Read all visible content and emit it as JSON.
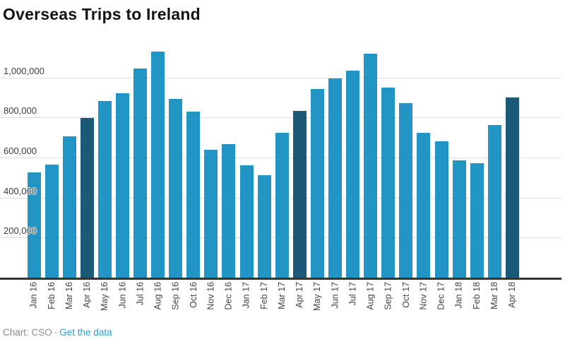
{
  "chart_data": {
    "type": "bar",
    "title": "Overseas Trips to Ireland",
    "categories": [
      "Jan 16",
      "Feb 16",
      "Mar 16",
      "Apr 16",
      "May 16",
      "Jun 16",
      "Jul 16",
      "Aug 16",
      "Sep 16",
      "Oct 16",
      "Nov 16",
      "Dec 16",
      "Jan 17",
      "Feb 17",
      "Mar 17",
      "Apr 17",
      "May 17",
      "Jun 17",
      "Jul 17",
      "Aug 17",
      "Sep 17",
      "Oct 17",
      "Nov 17",
      "Dec 17",
      "Jan 18",
      "Feb 18",
      "Mar 18",
      "Apr 18"
    ],
    "values": [
      524000,
      564000,
      704000,
      798000,
      882000,
      920000,
      1045000,
      1128000,
      892000,
      830000,
      640000,
      666000,
      561000,
      512000,
      722000,
      833000,
      943000,
      996000,
      1034000,
      1119000,
      948000,
      872000,
      722000,
      680000,
      585000,
      573000,
      763000,
      900000
    ],
    "highlight_indices": [
      3,
      15,
      27
    ],
    "ytick_values": [
      200000,
      400000,
      600000,
      800000,
      1000000
    ],
    "ytick_labels": [
      "200,000",
      "400,000",
      "600,000",
      "800,000",
      "1,000,000"
    ],
    "ylim": [
      0,
      1160000
    ],
    "grid": true,
    "legend": "none",
    "xlabel": "",
    "ylabel": "",
    "colors": {
      "bar": "#2196c4",
      "highlight": "#1a5a78",
      "gridline": "#dedede",
      "axis_line": "#333333",
      "link": "#2e9fd6"
    }
  },
  "footer": {
    "source_label": "Chart: CSO",
    "separator": "·",
    "link_label": "Get the data"
  }
}
